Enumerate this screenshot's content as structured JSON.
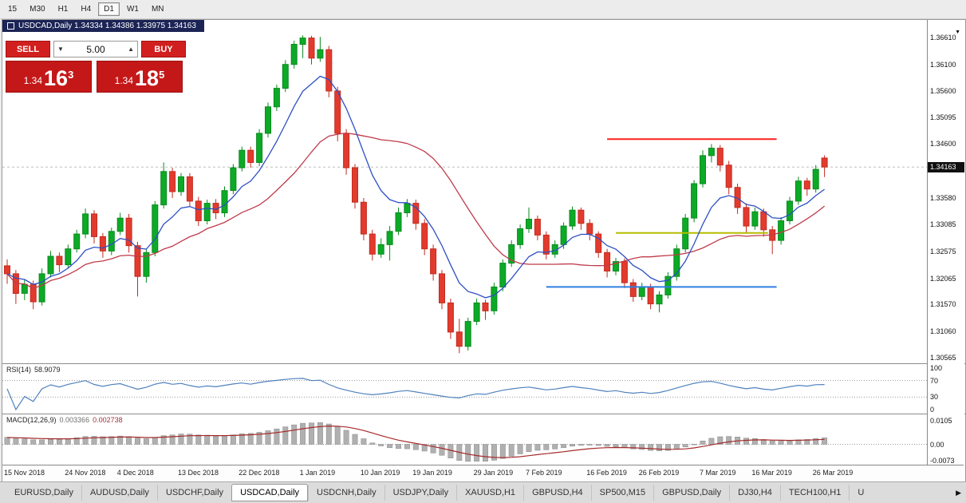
{
  "toolbar": {
    "timeframes": [
      {
        "label": "15",
        "active": false
      },
      {
        "label": "M30",
        "active": false
      },
      {
        "label": "H1",
        "active": false
      },
      {
        "label": "H4",
        "active": false
      },
      {
        "label": "D1",
        "active": true
      },
      {
        "label": "W1",
        "active": false
      },
      {
        "label": "MN",
        "active": false
      }
    ]
  },
  "chart_header": {
    "title": "USDCAD,Daily 1.34334 1.34386 1.33975 1.34163"
  },
  "trade_panel": {
    "sell_label": "SELL",
    "buy_label": "BUY",
    "volume": "5.00",
    "sell_price_small": "1.34",
    "sell_price_big": "16",
    "sell_price_sup": "3",
    "buy_price_small": "1.34",
    "buy_price_big": "18",
    "buy_price_sup": "5"
  },
  "price_scale": {
    "labels": [
      "1.36610",
      "1.36100",
      "1.35600",
      "1.35095",
      "1.34600",
      "1.33580",
      "1.33085",
      "1.32575",
      "1.32065",
      "1.31570",
      "1.31060",
      "1.30565"
    ],
    "current": "1.34163"
  },
  "rsi_panel": {
    "label": "RSI(14)",
    "value": "58.9079",
    "scale": [
      "100",
      "70",
      "30",
      "0"
    ],
    "levels": [
      70,
      30
    ],
    "color": "#4f81bd"
  },
  "macd_panel": {
    "label": "MACD(12,26,9)",
    "value1": "0.003366",
    "value2": "0.002738",
    "scale": [
      "0.0105",
      "0.00",
      "-0.0073"
    ],
    "bar_color": "#b0b0b0",
    "signal_color": "#a52a2a"
  },
  "date_axis": {
    "labels": [
      {
        "text": "15 Nov 2018",
        "i": 0
      },
      {
        "text": "24 Nov 2018",
        "i": 7
      },
      {
        "text": "4 Dec 2018",
        "i": 13
      },
      {
        "text": "13 Dec 2018",
        "i": 20
      },
      {
        "text": "22 Dec 2018",
        "i": 27
      },
      {
        "text": "1 Jan 2019",
        "i": 34
      },
      {
        "text": "10 Jan 2019",
        "i": 41
      },
      {
        "text": "19 Jan 2019",
        "i": 47
      },
      {
        "text": "29 Jan 2019",
        "i": 54
      },
      {
        "text": "7 Feb 2019",
        "i": 60
      },
      {
        "text": "16 Feb 2019",
        "i": 67
      },
      {
        "text": "26 Feb 2019",
        "i": 73
      },
      {
        "text": "7 Mar 2019",
        "i": 80
      },
      {
        "text": "16 Mar 2019",
        "i": 86
      },
      {
        "text": "26 Mar 2019",
        "i": 93
      }
    ]
  },
  "bottom_tabs": {
    "tabs": [
      "EURUSD,Daily",
      "AUDUSD,Daily",
      "USDCHF,Daily",
      "USDCAD,Daily",
      "USDCNH,Daily",
      "USDJPY,Daily",
      "XAUUSD,H1",
      "GBPUSD,H4",
      "SP500,M15",
      "GBPUSD,Daily",
      "DJ30,H4",
      "TECH100,H1",
      "U"
    ],
    "active": "USDCAD,Daily"
  },
  "chart_data": {
    "type": "candlestick",
    "symbol": "USDCAD",
    "timeframe": "Daily",
    "title": "USDCAD,Daily",
    "last_bid": 1.34163,
    "price_range": {
      "top": 1.3694,
      "bottom": 1.3046
    },
    "colors": {
      "up": "#0caa26",
      "up_stroke": "#0a8a1f",
      "down": "#e23b2e",
      "down_stroke": "#c22b20",
      "ma_fast": "#2e4fc4",
      "ma_slow": "#bf3b4b",
      "bid_line": "#bdbdbd"
    },
    "ma_fast_period": 8,
    "ma_slow_period": 20,
    "hlines": [
      {
        "name": "resistance-line",
        "color": "#ff1f1f",
        "price": 1.3469,
        "i0": 69,
        "i1": 88.5,
        "w": 2
      },
      {
        "name": "support-line-yellow",
        "color": "#b6bd00",
        "price": 1.3292,
        "i0": 70,
        "i1": 87.5,
        "w": 2
      },
      {
        "name": "support-line-blue",
        "color": "#2f7fe0",
        "price": 1.319,
        "i0": 62,
        "i1": 88.5,
        "w": 2
      }
    ],
    "ohlc": [
      [
        1.323,
        1.3242,
        1.3196,
        1.3215
      ],
      [
        1.3215,
        1.3222,
        1.3158,
        1.3178
      ],
      [
        1.3178,
        1.3205,
        1.3165,
        1.3195
      ],
      [
        1.3195,
        1.3202,
        1.3148,
        1.3162
      ],
      [
        1.3162,
        1.3225,
        1.3155,
        1.3215
      ],
      [
        1.3215,
        1.3258,
        1.3208,
        1.3248
      ],
      [
        1.3248,
        1.3255,
        1.3218,
        1.3232
      ],
      [
        1.3232,
        1.327,
        1.3225,
        1.3262
      ],
      [
        1.3262,
        1.3298,
        1.3255,
        1.329
      ],
      [
        1.329,
        1.3338,
        1.3282,
        1.3328
      ],
      [
        1.3328,
        1.3335,
        1.3272,
        1.3285
      ],
      [
        1.3285,
        1.3292,
        1.3245,
        1.3258
      ],
      [
        1.3258,
        1.3302,
        1.325,
        1.3295
      ],
      [
        1.3295,
        1.333,
        1.3288,
        1.332
      ],
      [
        1.332,
        1.3328,
        1.3255,
        1.3268
      ],
      [
        1.3268,
        1.3275,
        1.3172,
        1.321
      ],
      [
        1.321,
        1.3262,
        1.3198,
        1.3255
      ],
      [
        1.3255,
        1.3352,
        1.3248,
        1.3345
      ],
      [
        1.3345,
        1.3425,
        1.3338,
        1.3408
      ],
      [
        1.3408,
        1.3415,
        1.3358,
        1.337
      ],
      [
        1.337,
        1.3405,
        1.3362,
        1.3398
      ],
      [
        1.3398,
        1.3405,
        1.3342,
        1.3352
      ],
      [
        1.3352,
        1.336,
        1.3305,
        1.3315
      ],
      [
        1.3315,
        1.3355,
        1.3308,
        1.3348
      ],
      [
        1.3348,
        1.3356,
        1.3318,
        1.333
      ],
      [
        1.333,
        1.338,
        1.3322,
        1.3372
      ],
      [
        1.3372,
        1.3422,
        1.3365,
        1.3415
      ],
      [
        1.3415,
        1.3455,
        1.3408,
        1.3448
      ],
      [
        1.3448,
        1.3455,
        1.3415,
        1.3425
      ],
      [
        1.3425,
        1.3488,
        1.3418,
        1.348
      ],
      [
        1.348,
        1.3538,
        1.3472,
        1.353
      ],
      [
        1.353,
        1.3572,
        1.3522,
        1.3565
      ],
      [
        1.3565,
        1.3618,
        1.3558,
        1.361
      ],
      [
        1.361,
        1.3655,
        1.3602,
        1.3648
      ],
      [
        1.3648,
        1.3665,
        1.3622,
        1.366
      ],
      [
        1.366,
        1.3664,
        1.361,
        1.3622
      ],
      [
        1.3622,
        1.3662,
        1.3615,
        1.3638
      ],
      [
        1.3638,
        1.3645,
        1.3548,
        1.356
      ],
      [
        1.356,
        1.3568,
        1.3465,
        1.348
      ],
      [
        1.348,
        1.3488,
        1.3402,
        1.3415
      ],
      [
        1.3415,
        1.3422,
        1.3338,
        1.335
      ],
      [
        1.335,
        1.3358,
        1.3278,
        1.329
      ],
      [
        1.329,
        1.3298,
        1.324,
        1.3252
      ],
      [
        1.3252,
        1.3282,
        1.3245,
        1.327
      ],
      [
        1.327,
        1.3305,
        1.324,
        1.3295
      ],
      [
        1.3295,
        1.334,
        1.3288,
        1.333
      ],
      [
        1.333,
        1.3356,
        1.3322,
        1.3348
      ],
      [
        1.3348,
        1.3355,
        1.3298,
        1.331
      ],
      [
        1.331,
        1.3318,
        1.325,
        1.3262
      ],
      [
        1.3262,
        1.327,
        1.3202,
        1.3215
      ],
      [
        1.3215,
        1.3222,
        1.3148,
        1.316
      ],
      [
        1.316,
        1.3168,
        1.3092,
        1.3105
      ],
      [
        1.3105,
        1.313,
        1.3065,
        1.3078
      ],
      [
        1.3078,
        1.3132,
        1.307,
        1.3125
      ],
      [
        1.3125,
        1.3168,
        1.3118,
        1.316
      ],
      [
        1.316,
        1.3166,
        1.3128,
        1.3145
      ],
      [
        1.3145,
        1.3198,
        1.3138,
        1.319
      ],
      [
        1.319,
        1.3242,
        1.3182,
        1.3235
      ],
      [
        1.3235,
        1.3278,
        1.3228,
        1.327
      ],
      [
        1.327,
        1.3308,
        1.3262,
        1.33
      ],
      [
        1.33,
        1.334,
        1.3292,
        1.3318
      ],
      [
        1.3318,
        1.3325,
        1.3278,
        1.3288
      ],
      [
        1.3288,
        1.3295,
        1.3242,
        1.3252
      ],
      [
        1.3252,
        1.3278,
        1.3245,
        1.327
      ],
      [
        1.327,
        1.3312,
        1.3262,
        1.3305
      ],
      [
        1.3305,
        1.3342,
        1.3298,
        1.3335
      ],
      [
        1.3335,
        1.334,
        1.3298,
        1.331
      ],
      [
        1.331,
        1.3318,
        1.3278,
        1.329
      ],
      [
        1.329,
        1.3295,
        1.3245,
        1.3255
      ],
      [
        1.3255,
        1.3262,
        1.3208,
        1.322
      ],
      [
        1.322,
        1.3245,
        1.3212,
        1.3238
      ],
      [
        1.3238,
        1.3244,
        1.3188,
        1.3198
      ],
      [
        1.3198,
        1.3205,
        1.3162,
        1.3172
      ],
      [
        1.3172,
        1.3198,
        1.3165,
        1.319
      ],
      [
        1.319,
        1.3196,
        1.3148,
        1.3158
      ],
      [
        1.3158,
        1.3182,
        1.3142,
        1.3175
      ],
      [
        1.3175,
        1.3218,
        1.3168,
        1.321
      ],
      [
        1.321,
        1.327,
        1.3202,
        1.3262
      ],
      [
        1.3262,
        1.3328,
        1.3255,
        1.332
      ],
      [
        1.332,
        1.3392,
        1.3312,
        1.3385
      ],
      [
        1.3385,
        1.3448,
        1.3378,
        1.3438
      ],
      [
        1.3438,
        1.346,
        1.3425,
        1.3452
      ],
      [
        1.3452,
        1.3458,
        1.3408,
        1.342
      ],
      [
        1.342,
        1.3428,
        1.3365,
        1.3378
      ],
      [
        1.3378,
        1.3385,
        1.3328,
        1.334
      ],
      [
        1.334,
        1.3348,
        1.3292,
        1.3305
      ],
      [
        1.3305,
        1.334,
        1.3298,
        1.3332
      ],
      [
        1.3332,
        1.3338,
        1.3285,
        1.3298
      ],
      [
        1.3298,
        1.3305,
        1.3252,
        1.3278
      ],
      [
        1.3278,
        1.3322,
        1.327,
        1.3315
      ],
      [
        1.3315,
        1.336,
        1.3308,
        1.3352
      ],
      [
        1.3352,
        1.3398,
        1.3345,
        1.339
      ],
      [
        1.339,
        1.3396,
        1.3362,
        1.3375
      ],
      [
        1.3375,
        1.342,
        1.3368,
        1.3412
      ],
      [
        1.34334,
        1.34386,
        1.33975,
        1.34163
      ]
    ],
    "rsi": {
      "period": 14
    },
    "macd": {
      "fast": 12,
      "slow": 26,
      "signal": 9
    }
  }
}
